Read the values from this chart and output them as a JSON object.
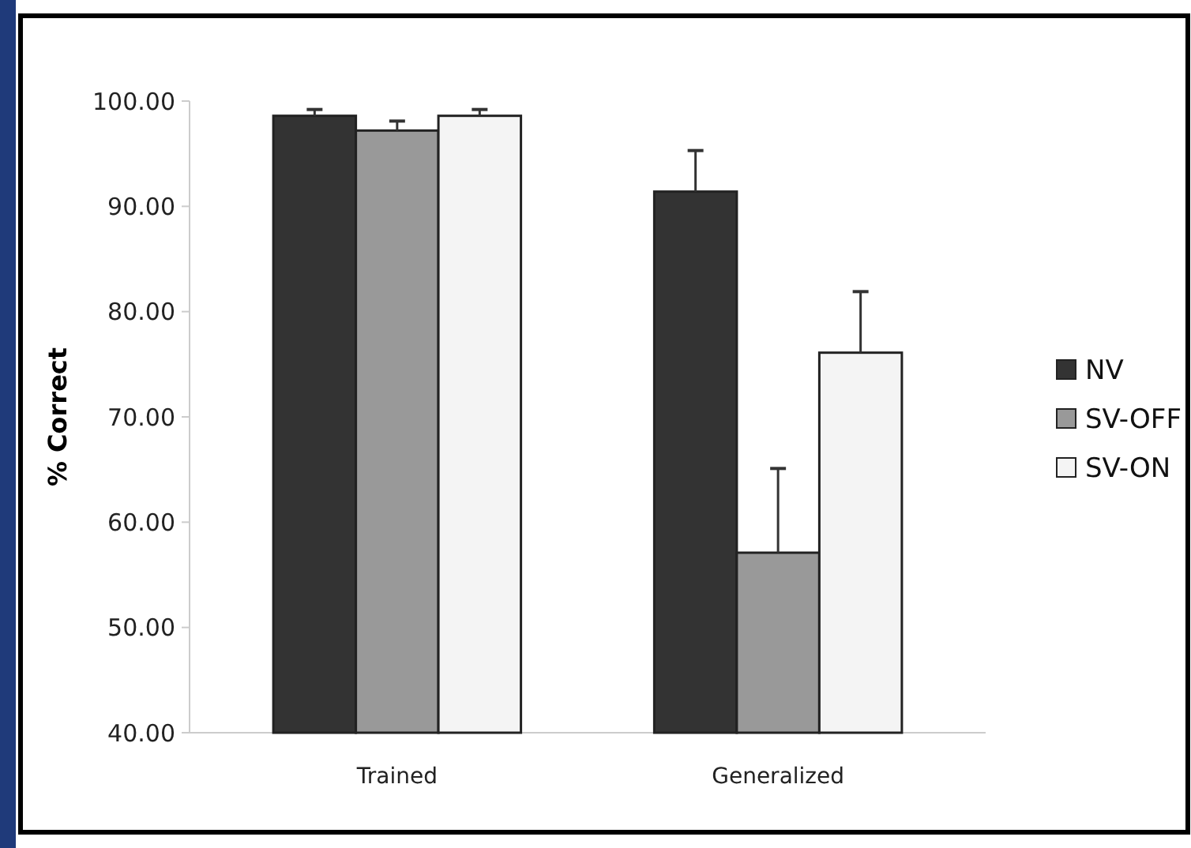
{
  "chart_data": {
    "type": "bar",
    "ylabel": "% Correct",
    "categories": [
      "Trained",
      "Generalized"
    ],
    "series": [
      {
        "name": "NV",
        "color": "#333333",
        "values": [
          98.6,
          91.4
        ],
        "errors": [
          0.6,
          3.9
        ]
      },
      {
        "name": "SV-OFF",
        "color": "#999999",
        "values": [
          97.2,
          57.1
        ],
        "errors": [
          0.9,
          8.0
        ]
      },
      {
        "name": "SV-ON",
        "color": "#f4f4f4",
        "values": [
          98.6,
          76.1
        ],
        "errors": [
          0.6,
          5.8
        ]
      }
    ],
    "ylim": [
      40,
      100
    ],
    "yticks": [
      {
        "value": 40,
        "label": "40.00"
      },
      {
        "value": 50,
        "label": "50.00"
      },
      {
        "value": 60,
        "label": "60.00"
      },
      {
        "value": 70,
        "label": "70.00"
      },
      {
        "value": 80,
        "label": "80.00"
      },
      {
        "value": 90,
        "label": "90.00"
      },
      {
        "value": 100,
        "label": "100.00"
      }
    ],
    "legend": "right"
  }
}
